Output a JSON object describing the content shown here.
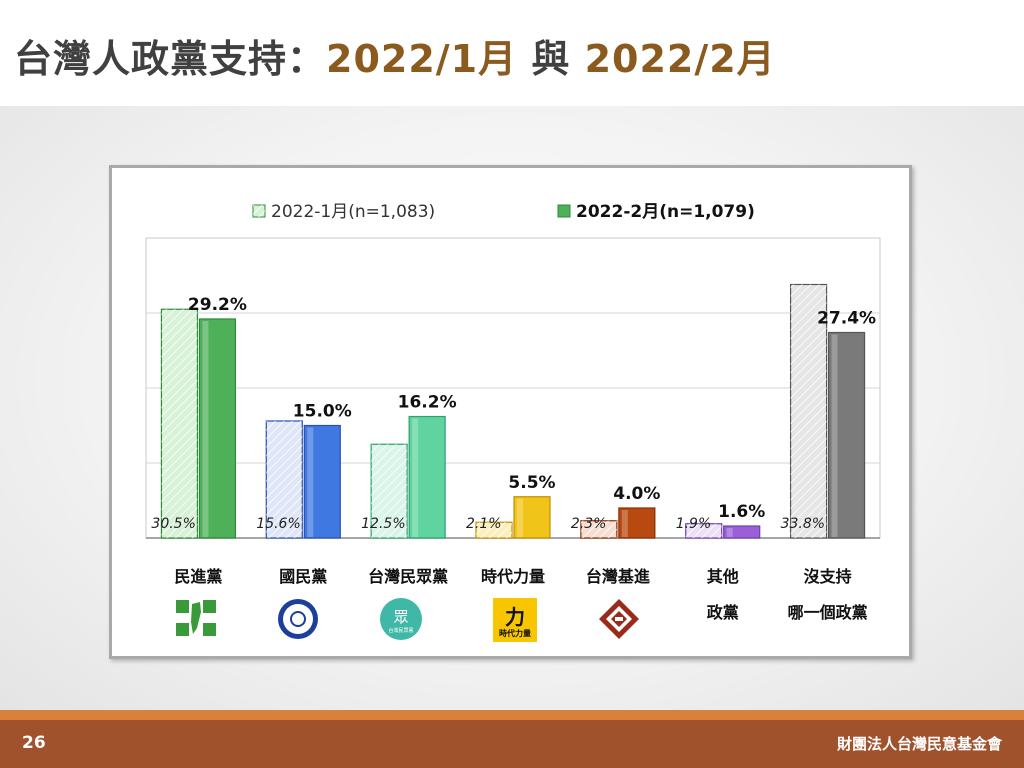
{
  "title": {
    "main": "台灣人政黨支持：",
    "date1": "2022/1月",
    "and": " 與 ",
    "date2": "2022/2月"
  },
  "footer": {
    "page_number": "26",
    "organization": "財團法人台灣民意基金會"
  },
  "chart_data": {
    "type": "bar",
    "categories": [
      "民進黨",
      "國民黨",
      "台灣民眾黨",
      "時代力量",
      "台灣基進",
      "其他\n政黨",
      "沒支持\n哪一個政黨"
    ],
    "category_lines": [
      [
        "民進黨"
      ],
      [
        "國民黨"
      ],
      [
        "台灣民眾黨"
      ],
      [
        "時代力量"
      ],
      [
        "台灣基進"
      ],
      [
        "其他",
        "政黨"
      ],
      [
        "沒支持",
        "哪一個政黨"
      ]
    ],
    "series": [
      {
        "name": "2022-1月(n=1,083)",
        "values": [
          30.5,
          15.6,
          12.5,
          2.1,
          2.3,
          1.9,
          33.8
        ],
        "labels": [
          "30.5%",
          "15.6%",
          "12.5%",
          "2.1%",
          "2.3%",
          "1.9%",
          "33.8%"
        ],
        "pattern": "hatched"
      },
      {
        "name": "2022-2月(n=1,079)",
        "values": [
          29.2,
          15.0,
          16.2,
          5.5,
          4.0,
          1.6,
          27.4
        ],
        "labels": [
          "29.2%",
          "15.0%",
          "16.2%",
          "5.5%",
          "4.0%",
          "1.6%",
          "27.4%"
        ],
        "pattern": "solid"
      }
    ],
    "colors": {
      "light": [
        "#d7f2d7",
        "#dfe6f8",
        "#d9f4e8",
        "#fbefc0",
        "#f5ddd0",
        "#ece0f6",
        "#e6e6e6"
      ],
      "dark": [
        "#4fb05a",
        "#3f78e0",
        "#5fd4a0",
        "#f0c419",
        "#b84a10",
        "#9b5fd8",
        "#7a7a7a"
      ],
      "edge": [
        "#2e8a38",
        "#2a4fb0",
        "#2fa070",
        "#c09000",
        "#8a3008",
        "#7040b0",
        "#555555"
      ]
    },
    "ylim": [
      0,
      40
    ],
    "grid": true,
    "legend": "top",
    "party_logos": [
      "dpp-logo",
      "kmt-logo",
      "tpp-logo",
      "npp-logo",
      "tsp-logo",
      "",
      ""
    ]
  }
}
